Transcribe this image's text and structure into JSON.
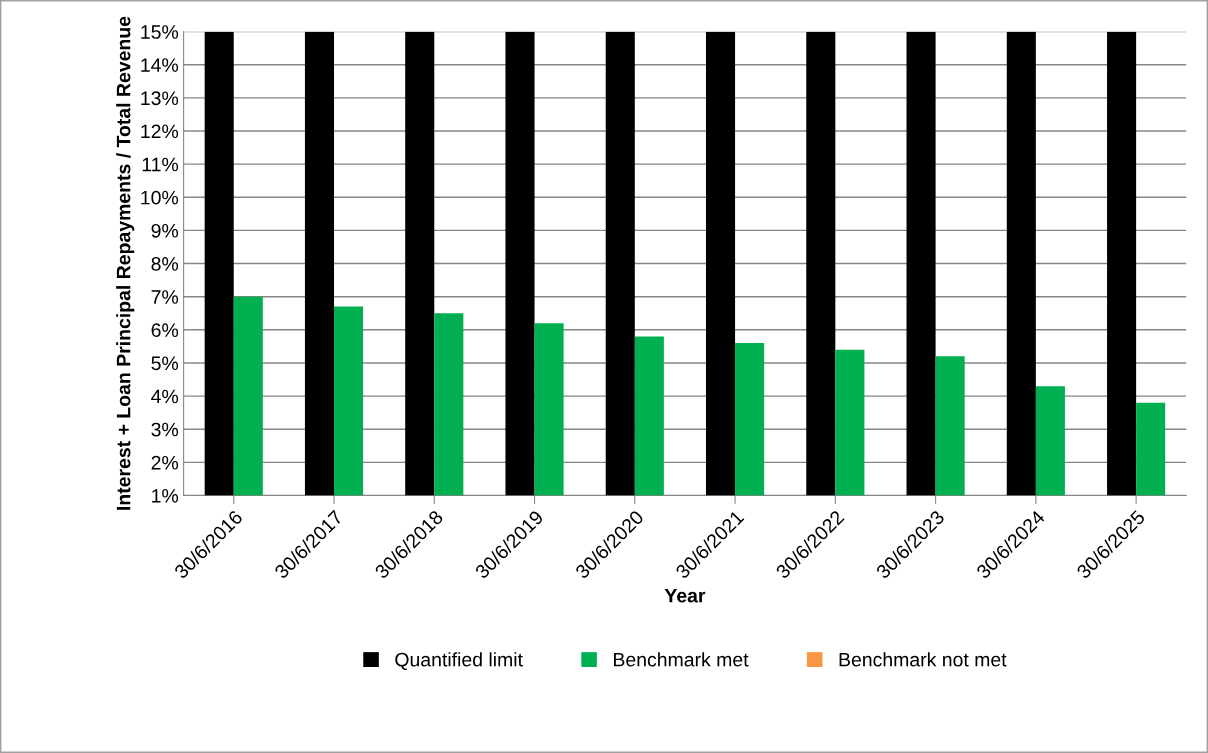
{
  "chart_data": {
    "type": "bar",
    "xlabel": "Year",
    "ylabel": "Interest + Loan Principal Repayments / Total Revenue",
    "categories": [
      "30/6/2016",
      "30/6/2017",
      "30/6/2018",
      "30/6/2019",
      "30/6/2020",
      "30/6/2021",
      "30/6/2022",
      "30/6/2023",
      "30/6/2024",
      "30/6/2025"
    ],
    "series": [
      {
        "name": "Quantified limit",
        "color": "#000000",
        "values": [
          15,
          15,
          15,
          15,
          15,
          15,
          15,
          15,
          15,
          15
        ]
      },
      {
        "name": "Benchmark met",
        "color": "#00b050",
        "values": [
          7.0,
          6.7,
          6.5,
          6.2,
          5.8,
          5.6,
          5.4,
          5.2,
          4.3,
          3.8
        ]
      },
      {
        "name": "Benchmark not met",
        "color": "#f79646",
        "values": [
          null,
          null,
          null,
          null,
          null,
          null,
          null,
          null,
          null,
          null
        ]
      }
    ],
    "ylim": [
      1,
      15
    ],
    "yticks": [
      {
        "value": 1,
        "label": "1%"
      },
      {
        "value": 2,
        "label": "2%"
      },
      {
        "value": 3,
        "label": "3%"
      },
      {
        "value": 4,
        "label": "4%"
      },
      {
        "value": 5,
        "label": "5%"
      },
      {
        "value": 6,
        "label": "6%"
      },
      {
        "value": 7,
        "label": "7%"
      },
      {
        "value": 8,
        "label": "8%"
      },
      {
        "value": 9,
        "label": "9%"
      },
      {
        "value": 10,
        "label": "10%"
      },
      {
        "value": 11,
        "label": "11%"
      },
      {
        "value": 12,
        "label": "12%"
      },
      {
        "value": 13,
        "label": "13%"
      },
      {
        "value": 14,
        "label": "14%"
      },
      {
        "value": 15,
        "label": "15%"
      }
    ],
    "grid": "y",
    "legend": "bottom"
  }
}
